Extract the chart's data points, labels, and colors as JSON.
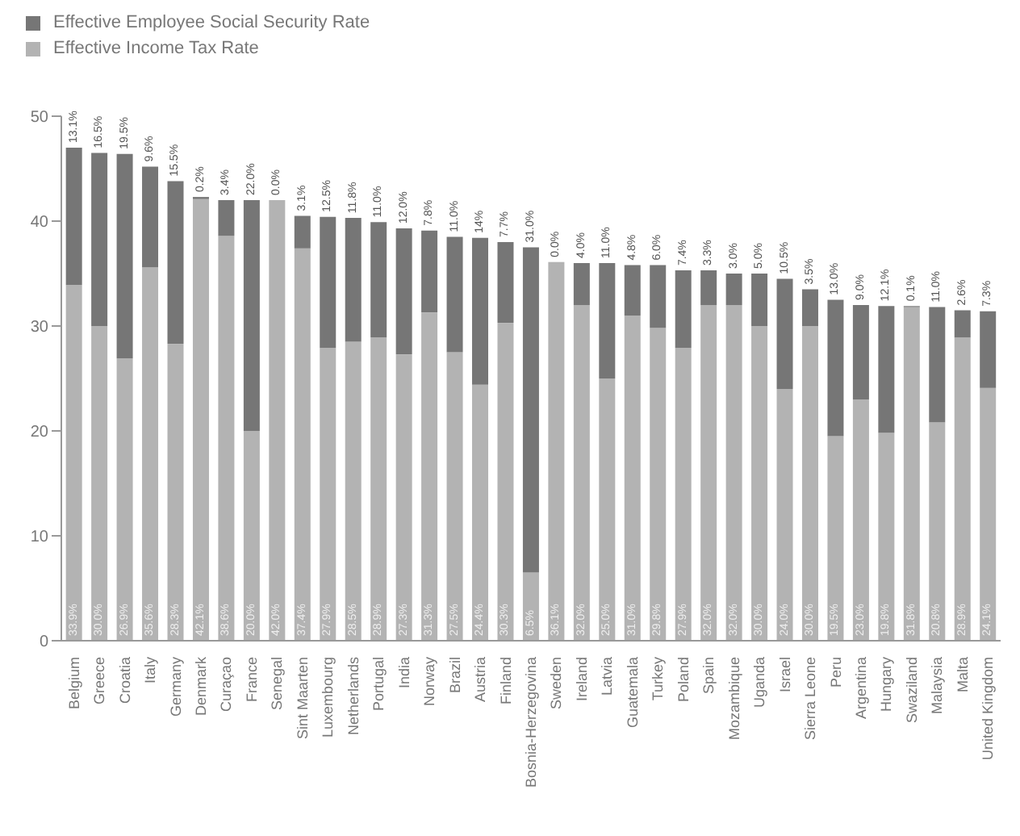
{
  "chart_data": {
    "type": "bar",
    "stacked": true,
    "legend": "top left",
    "grid": false,
    "categories": [
      "Belgium",
      "Greece",
      "Croatia",
      "Italy",
      "Germany",
      "Denmark",
      "Curaçao",
      "France",
      "Senegal",
      "Sint Maarten",
      "Luxembourg",
      "Netherlands",
      "Portugal",
      "India",
      "Norway",
      "Brazil",
      "Austria",
      "Finland",
      "Bosnia-Herzegovina",
      "Sweden",
      "Ireland",
      "Latvia",
      "Guatemala",
      "Turkey",
      "Poland",
      "Spain",
      "Mozambique",
      "Uganda",
      "Israel",
      "Sierra Leone",
      "Peru",
      "Argentina",
      "Hungary",
      "Swaziland",
      "Malaysia",
      "Malta",
      "United Kingdom"
    ],
    "ylim": [
      0,
      50
    ],
    "yticks": [
      0,
      10,
      20,
      30,
      40,
      50
    ],
    "series": [
      {
        "name": "Effective Income Tax Rate",
        "color": "#b3b3b3",
        "values": [
          33.9,
          30.0,
          26.9,
          35.6,
          28.3,
          42.1,
          38.6,
          20.0,
          42.0,
          37.4,
          27.9,
          28.5,
          28.9,
          27.3,
          31.3,
          27.5,
          24.4,
          30.3,
          6.5,
          36.1,
          32.0,
          25.0,
          31.0,
          29.8,
          27.9,
          32.0,
          32.0,
          30.0,
          24.0,
          30.0,
          19.5,
          23.0,
          19.8,
          31.8,
          20.8,
          28.9,
          24.1
        ],
        "value_labels": [
          "33.9%",
          "30.0%",
          "26.9%",
          "35.6%",
          "28.3%",
          "42.1%",
          "38.6%",
          "20.0%",
          "42.0%",
          "37.4%",
          "27.9%",
          "28.5%",
          "28.9%",
          "27.3%",
          "31.3%",
          "27.5%",
          "24.4%",
          "30.3%",
          "6.5%",
          "36.1%",
          "32.0%",
          "25.0%",
          "31.0%",
          "29.8%",
          "27.9%",
          "32.0%",
          "32.0%",
          "30.0%",
          "24.0%",
          "30.0%",
          "19.5%",
          "23.0%",
          "19.8%",
          "31.8%",
          "20.8%",
          "28.9%",
          "24.1%"
        ]
      },
      {
        "name": "Effective Employee Social Security Rate",
        "color": "#767676",
        "values": [
          13.1,
          16.5,
          19.5,
          9.6,
          15.5,
          0.2,
          3.4,
          22.0,
          0.0,
          3.1,
          12.5,
          11.8,
          11.0,
          12.0,
          7.8,
          11.0,
          14,
          7.7,
          31.0,
          0.0,
          4.0,
          11.0,
          4.8,
          6.0,
          7.4,
          3.3,
          3.0,
          5.0,
          10.5,
          3.5,
          13.0,
          9.0,
          12.1,
          0.1,
          11.0,
          2.6,
          7.3
        ],
        "value_labels": [
          "13.1%",
          "16.5%",
          "19.5%",
          "9.6%",
          "15.5%",
          "0.2%",
          "3.4%",
          "22.0%",
          "0.0%",
          "3.1%",
          "12.5%",
          "11.8%",
          "11.0%",
          "12.0%",
          "7.8%",
          "11.0%",
          "14%",
          "7.7%",
          "31.0%",
          "0.0%",
          "4.0%",
          "11.0%",
          "4.8%",
          "6.0%",
          "7.4%",
          "3.3%",
          "3.0%",
          "5.0%",
          "10.5%",
          "3.5%",
          "13.0%",
          "9.0%",
          "12.1%",
          "0.1%",
          "11.0%",
          "2.6%",
          "7.3%"
        ]
      }
    ]
  }
}
